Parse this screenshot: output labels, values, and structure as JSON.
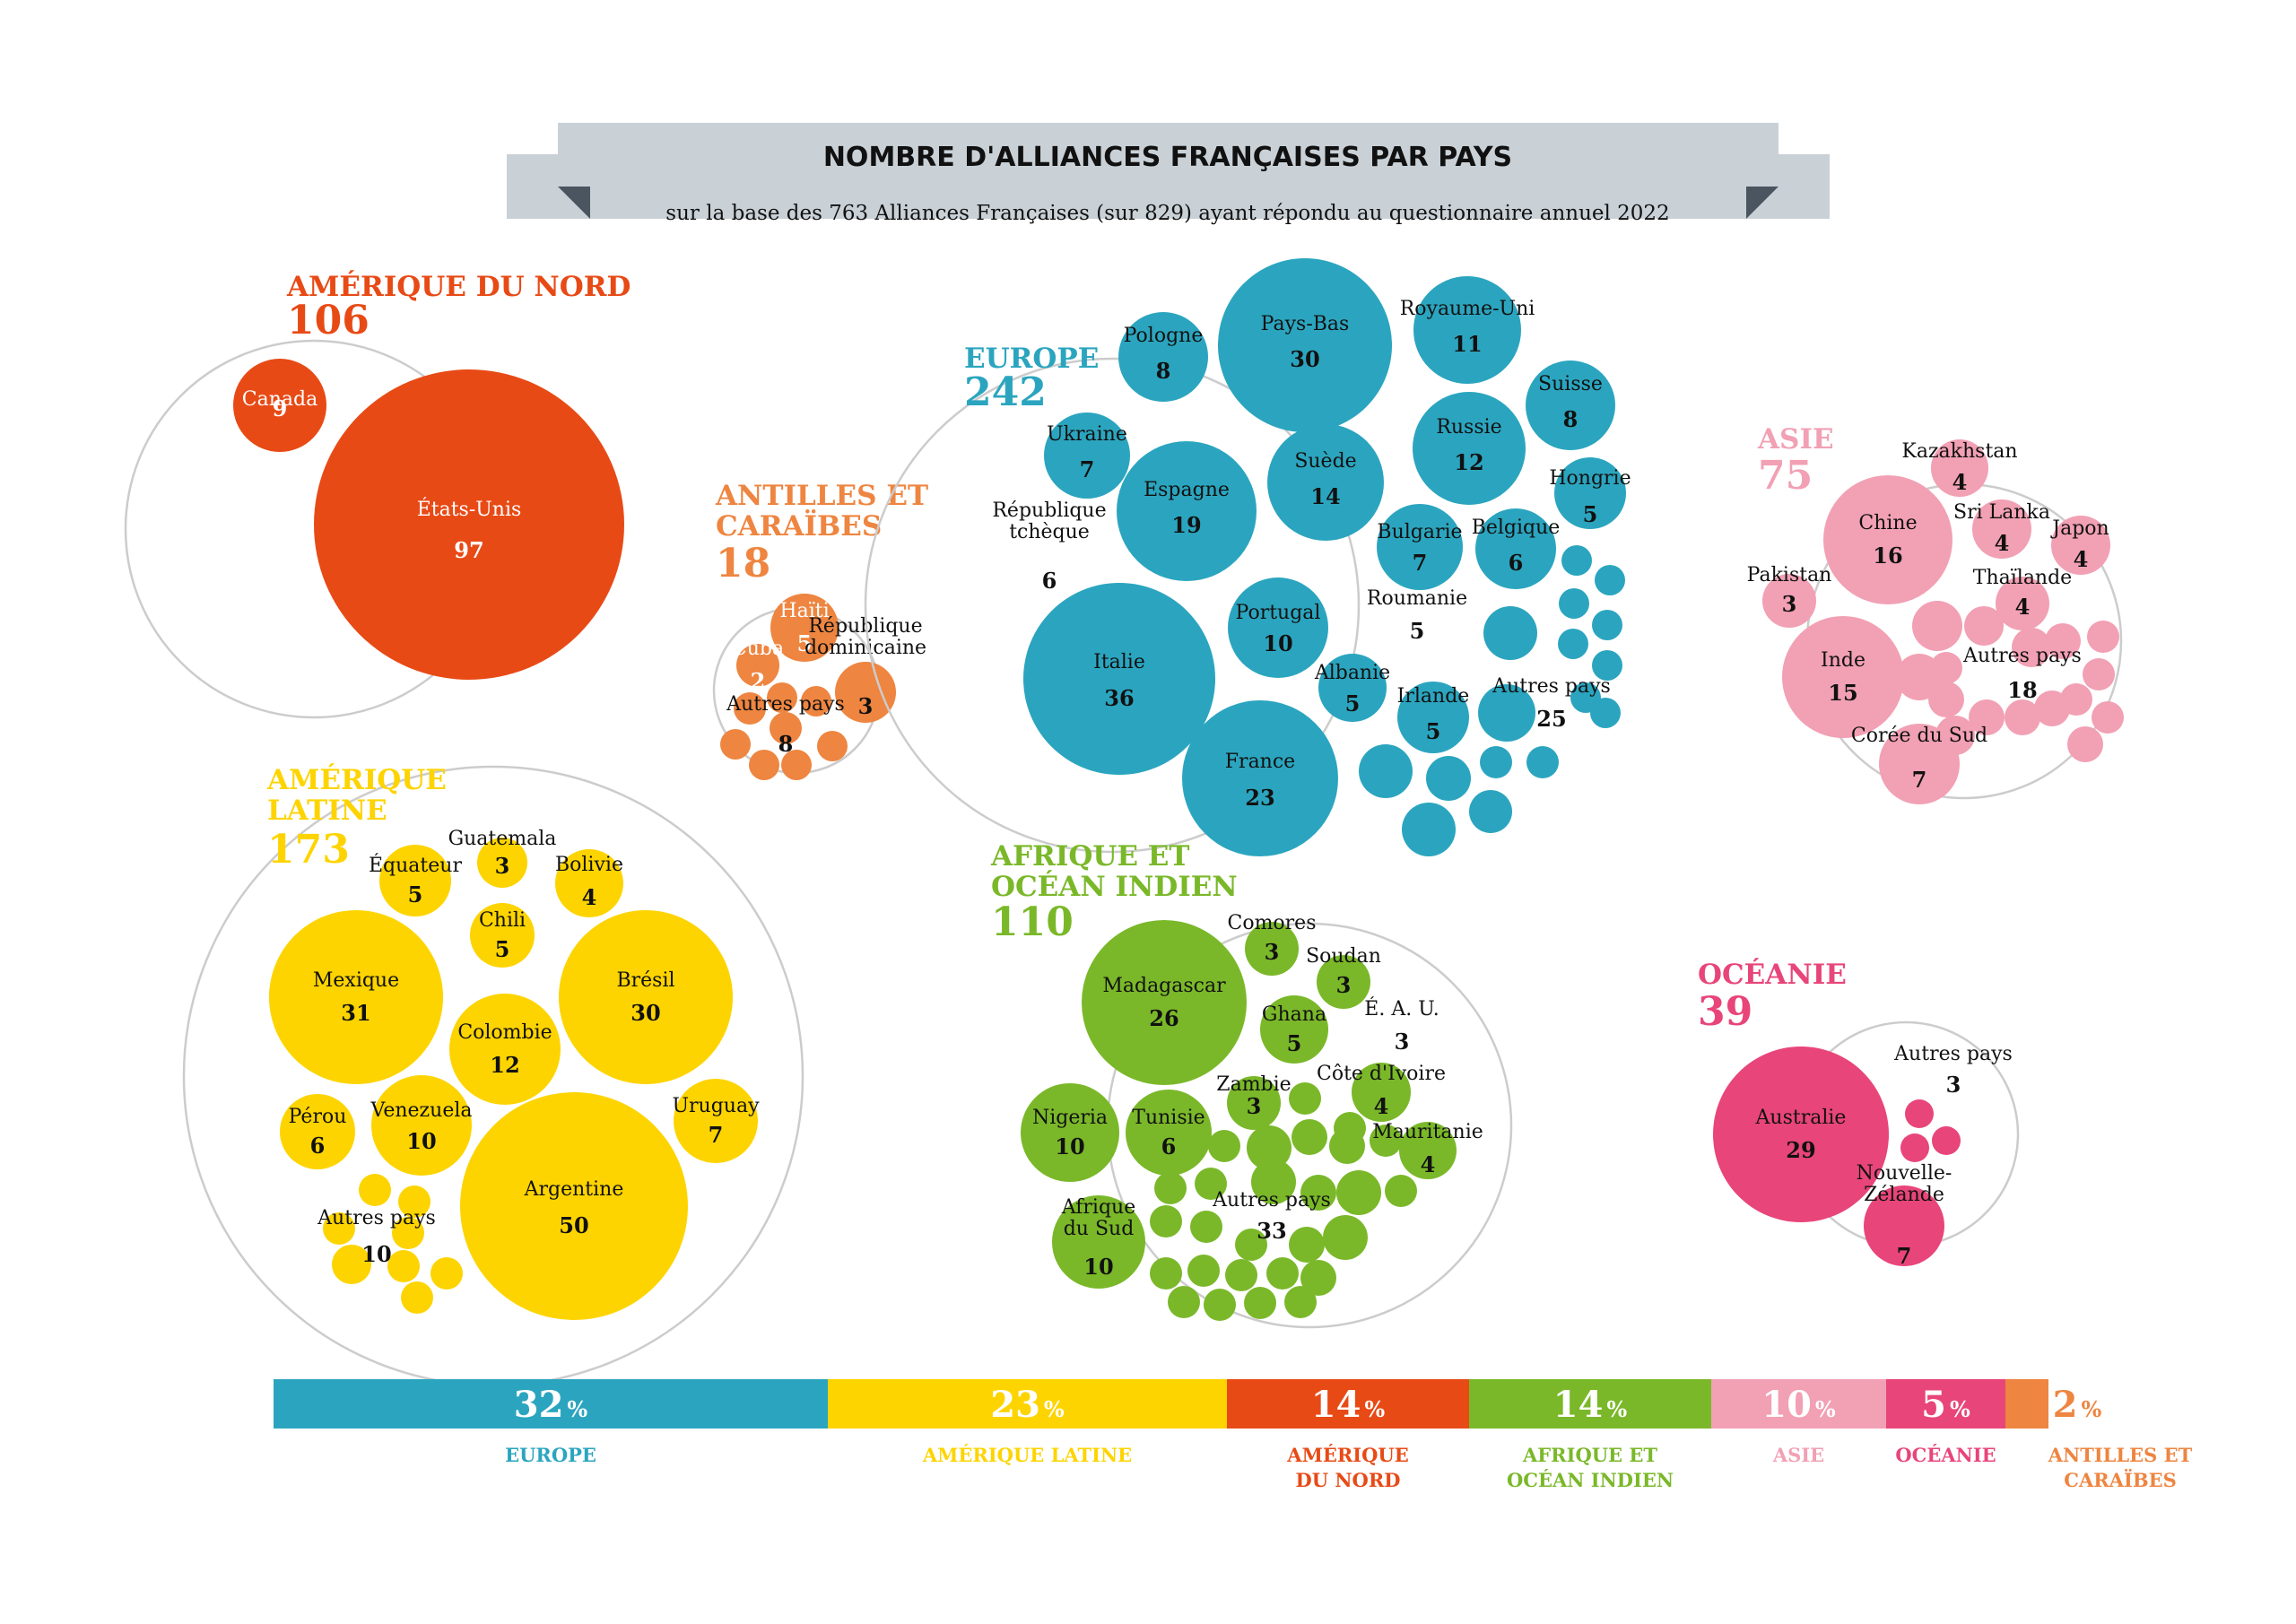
{
  "header": {
    "title": "NOMBRE D'ALLIANCES FRANÇAISES PAR PAYS",
    "subtitle": "sur la base des 763 Alliances Françaises (sur 829) ayant répondu au questionnaire annuel 2022"
  },
  "chart_data": {
    "type": "bubble",
    "regions": [
      {
        "key": "amerique_nord",
        "name": "AMÉRIQUE DU NORD",
        "total": "106",
        "color": "#E84A16",
        "countries": [
          {
            "name": "Canada",
            "value": "9"
          },
          {
            "name": "États-Unis",
            "value": "97"
          }
        ]
      },
      {
        "key": "antilles",
        "name": "ANTILLES ET CARAÏBES",
        "total": "18",
        "color": "#EE8540",
        "countries": [
          {
            "name": "Haïti",
            "value": "5"
          },
          {
            "name": "Cuba",
            "value": "2"
          },
          {
            "name": "République dominicaine",
            "value": "3"
          },
          {
            "name": "Autres pays",
            "value": "8"
          }
        ]
      },
      {
        "key": "europe",
        "name": "EUROPE",
        "total": "242",
        "color": "#2BA5BF",
        "countries": [
          {
            "name": "Pays-Bas",
            "value": "30"
          },
          {
            "name": "Royaume-Uni",
            "value": "11"
          },
          {
            "name": "Pologne",
            "value": "8"
          },
          {
            "name": "Suisse",
            "value": "8"
          },
          {
            "name": "Ukraine",
            "value": "7"
          },
          {
            "name": "Russie",
            "value": "12"
          },
          {
            "name": "Espagne",
            "value": "19"
          },
          {
            "name": "Suède",
            "value": "14"
          },
          {
            "name": "Hongrie",
            "value": "5"
          },
          {
            "name": "République tchèque",
            "value": "6"
          },
          {
            "name": "Bulgarie",
            "value": "7"
          },
          {
            "name": "Belgique",
            "value": "6"
          },
          {
            "name": "Italie",
            "value": "36"
          },
          {
            "name": "Portugal",
            "value": "10"
          },
          {
            "name": "Roumanie",
            "value": "5"
          },
          {
            "name": "Albanie",
            "value": "5"
          },
          {
            "name": "Irlande",
            "value": "5"
          },
          {
            "name": "France",
            "value": "23"
          },
          {
            "name": "Autres pays",
            "value": "25"
          }
        ]
      },
      {
        "key": "asie",
        "name": "ASIE",
        "total": "75",
        "color": "#F2A0B4",
        "countries": [
          {
            "name": "Kazakhstan",
            "value": "4"
          },
          {
            "name": "Chine",
            "value": "16"
          },
          {
            "name": "Sri Lanka",
            "value": "4"
          },
          {
            "name": "Japon",
            "value": "4"
          },
          {
            "name": "Pakistan",
            "value": "3"
          },
          {
            "name": "Thaïlande",
            "value": "4"
          },
          {
            "name": "Inde",
            "value": "15"
          },
          {
            "name": "Autres pays",
            "value": "18"
          },
          {
            "name": "Corée du Sud",
            "value": "7"
          }
        ]
      },
      {
        "key": "amerique_latine",
        "name": "AMÉRIQUE LATINE",
        "total": "173",
        "color": "#FDD400",
        "countries": [
          {
            "name": "Guatemala",
            "value": "3"
          },
          {
            "name": "Équateur",
            "value": "5"
          },
          {
            "name": "Bolivie",
            "value": "4"
          },
          {
            "name": "Chili",
            "value": "5"
          },
          {
            "name": "Mexique",
            "value": "31"
          },
          {
            "name": "Brésil",
            "value": "30"
          },
          {
            "name": "Colombie",
            "value": "12"
          },
          {
            "name": "Pérou",
            "value": "6"
          },
          {
            "name": "Venezuela",
            "value": "10"
          },
          {
            "name": "Uruguay",
            "value": "7"
          },
          {
            "name": "Argentine",
            "value": "50"
          },
          {
            "name": "Autres pays",
            "value": "10"
          }
        ]
      },
      {
        "key": "afrique",
        "name": "AFRIQUE ET OCÉAN INDIEN",
        "total": "110",
        "color": "#7AB829",
        "countries": [
          {
            "name": "Comores",
            "value": "3"
          },
          {
            "name": "Soudan",
            "value": "3"
          },
          {
            "name": "Madagascar",
            "value": "26"
          },
          {
            "name": "Ghana",
            "value": "5"
          },
          {
            "name": "É. A. U.",
            "value": "3"
          },
          {
            "name": "Zambie",
            "value": "3"
          },
          {
            "name": "Côte d'Ivoire",
            "value": "4"
          },
          {
            "name": "Nigeria",
            "value": "10"
          },
          {
            "name": "Tunisie",
            "value": "6"
          },
          {
            "name": "Mauritanie",
            "value": "4"
          },
          {
            "name": "Afrique du Sud",
            "value": "10"
          },
          {
            "name": "Autres pays",
            "value": "33"
          }
        ]
      },
      {
        "key": "oceanie",
        "name": "OCÉANIE",
        "total": "39",
        "color": "#E8457A",
        "countries": [
          {
            "name": "Australie",
            "value": "29"
          },
          {
            "name": "Autres pays",
            "value": "3"
          },
          {
            "name": "Nouvelle-Zélande",
            "value": "7"
          }
        ]
      }
    ],
    "share_bar": [
      {
        "label": "EUROPE",
        "value": 32,
        "display": "32",
        "unit": "%",
        "color": "#2BA5BF"
      },
      {
        "label": "AMÉRIQUE LATINE",
        "value": 23,
        "display": "23",
        "unit": "%",
        "color": "#FDD400"
      },
      {
        "label": "AMÉRIQUE DU NORD",
        "value": 14,
        "display": "14",
        "unit": "%",
        "color": "#E84A16"
      },
      {
        "label": "AFRIQUE ET OCÉAN INDIEN",
        "value": 14,
        "display": "14",
        "unit": "%",
        "color": "#7AB829"
      },
      {
        "label": "ASIE",
        "value": 10,
        "display": "10",
        "unit": "%",
        "color": "#F2A0B4"
      },
      {
        "label": "OCÉANIE",
        "value": 5,
        "display": "5",
        "unit": "%",
        "color": "#E8457A"
      },
      {
        "label": "ANTILLES ET CARAÏBES",
        "value": 2,
        "display": "2",
        "unit": "%",
        "color": "#EE8540"
      }
    ]
  }
}
